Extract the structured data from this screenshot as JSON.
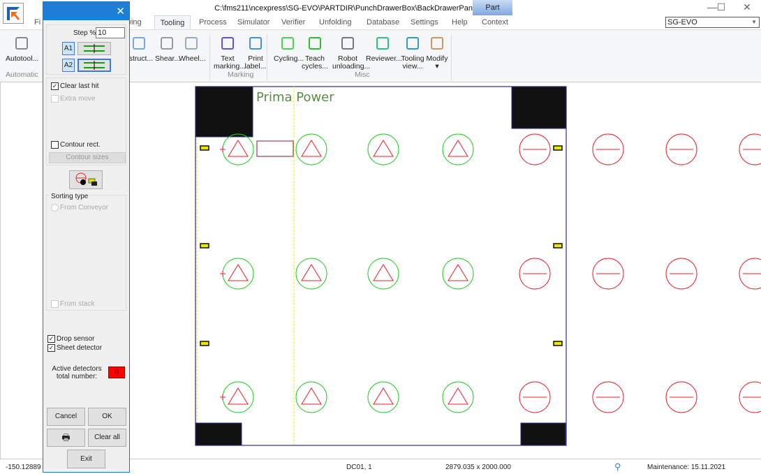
{
  "window": {
    "title": "C:\\fms211\\ncexpress\\SG-EVO\\PARTDIR\\PunchDrawerBox\\BackDrawerPanelP",
    "context_tab": "Part",
    "minimize": "—",
    "maximize": "☐",
    "close": "✕"
  },
  "tabs": [
    {
      "label": "Fi"
    },
    {
      "label": "wing"
    },
    {
      "label": "Tooling",
      "active": true
    },
    {
      "label": "Process"
    },
    {
      "label": "Simulator"
    },
    {
      "label": "Verifier"
    },
    {
      "label": "Unfolding"
    },
    {
      "label": "Database"
    },
    {
      "label": "Settings"
    },
    {
      "label": "Help"
    },
    {
      "label": "Context"
    }
  ],
  "machine_combo": {
    "value": "SG-EVO"
  },
  "ribbon": {
    "buttons": [
      {
        "label": "Autotool...",
        "icon": "autotool-icon"
      },
      {
        "label": "estruct...",
        "icon": "destruct-icon"
      },
      {
        "label": "Shear...",
        "icon": "shear-icon"
      },
      {
        "label": "Wheel...",
        "icon": "wheel-icon"
      },
      {
        "label": "Text\nmarking...",
        "icon": "text-marking-icon"
      },
      {
        "label": "Print\nlabel...",
        "icon": "print-label-icon"
      },
      {
        "label": "Cycling...",
        "icon": "cycling-icon"
      },
      {
        "label": "Teach\ncycles...",
        "icon": "teach-cycles-icon"
      },
      {
        "label": "Robot\nunloading...",
        "icon": "robot-icon"
      },
      {
        "label": "Reviewer...",
        "icon": "reviewer-icon"
      },
      {
        "label": "Tooling\nview...",
        "icon": "tooling-view-icon"
      },
      {
        "label": "Modify\n▾",
        "icon": "modify-icon"
      }
    ],
    "groups": [
      {
        "label": "Automatic"
      },
      {
        "label": "h"
      },
      {
        "label": "Marking"
      },
      {
        "label": "Misc"
      }
    ]
  },
  "dialog": {
    "close": "✕",
    "step_label": "Step %",
    "step_value": "10",
    "a1": "A1",
    "a2": "A2",
    "clear_last_hit": {
      "label": "Clear last hit",
      "checked": true
    },
    "extra_move": {
      "label": "Extra move",
      "checked": false,
      "disabled": true
    },
    "contour_rect": {
      "label": "Contour rect.",
      "checked": false
    },
    "contour_sizes": "Contour sizes",
    "sorting_type": "Sorting type",
    "from_conveyor": "From Conveyor",
    "from_stack": {
      "label": "From stack",
      "checked": false,
      "disabled": true
    },
    "drop_sensor": {
      "label": "Drop sensor",
      "checked": true
    },
    "sheet_detector": {
      "label": "Sheet detector",
      "checked": true
    },
    "active_detectors_label": "Active detectors total number:",
    "active_detectors_value": "0",
    "cancel": "Cancel",
    "ok": "OK",
    "clear_all": "Clear all",
    "exit": "Exit"
  },
  "drawing": {
    "logo_text": "Prima Power",
    "rows": 3,
    "hit_columns": [
      "triangle-green",
      "triangle-green",
      "triangle-green",
      "triangle-green",
      "slot-red",
      "slot-red",
      "slot-red",
      "slot-red"
    ],
    "colors": {
      "sheet": "#2b2b8c",
      "green": "#22cc22",
      "red": "#e8202a",
      "yellow": "#e8e800"
    }
  },
  "status": {
    "coord": "-150.12889",
    "station": "DC01, 1",
    "sheet_size": "2879.035 x 2000.000",
    "maintenance": "Maintenance: 15.11.2021"
  }
}
